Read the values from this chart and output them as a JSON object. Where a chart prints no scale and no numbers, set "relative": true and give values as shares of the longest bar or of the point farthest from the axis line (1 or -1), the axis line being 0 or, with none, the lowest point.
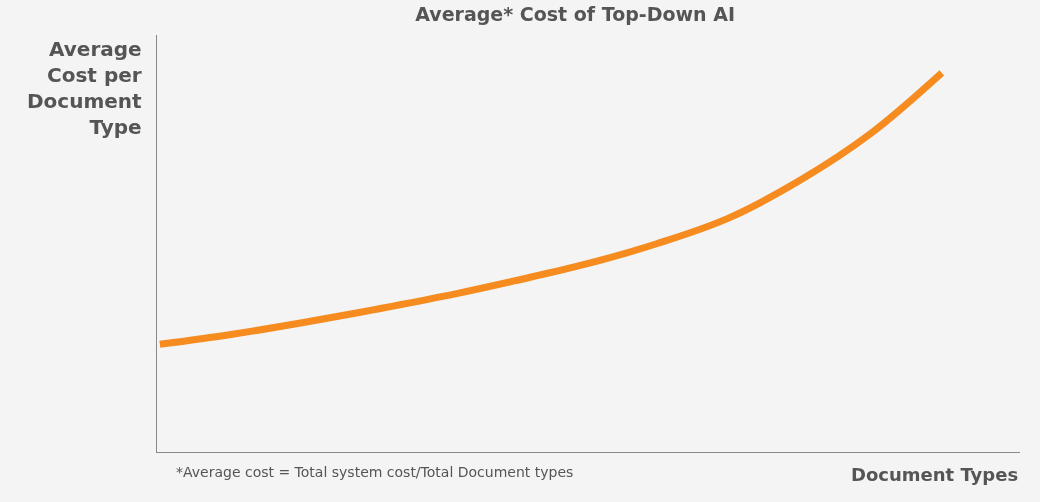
{
  "chart_data": {
    "type": "line",
    "title": "Average* Cost of Top-Down AI",
    "ylabel": "Average\nCost per\nDocument\nType",
    "xlabel": "Document Types",
    "relative": true,
    "annotations": [
      "*Average cost = Total system cost/Total Document types"
    ],
    "categories": [
      null,
      null,
      null,
      null,
      null,
      null,
      null,
      null,
      null,
      null,
      null,
      null
    ],
    "series": [
      {
        "color": "#f68b1f",
        "values": [
          0.284,
          0.31,
          0.341,
          0.375,
          0.411,
          0.452,
          0.496,
          0.55,
          0.617,
          0.716,
          0.84,
          1.0
        ]
      }
    ],
    "marker": "none",
    "line_style": "solid"
  }
}
